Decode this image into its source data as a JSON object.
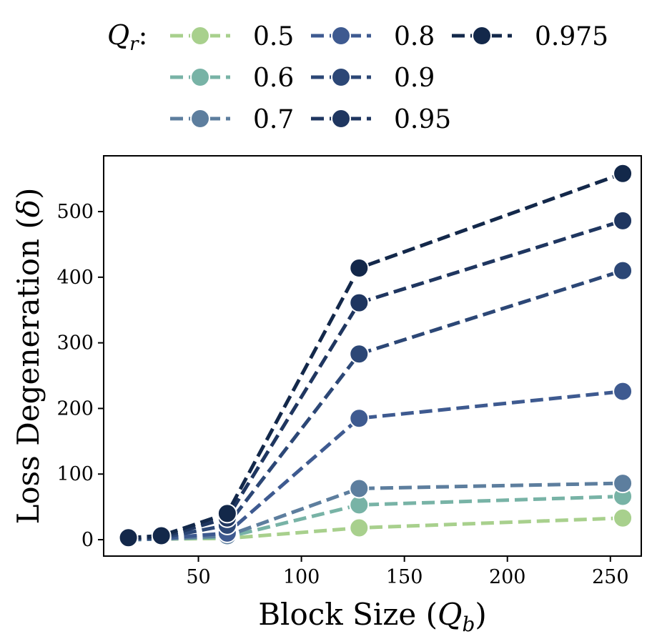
{
  "chart_data": {
    "type": "line",
    "title": "",
    "xlabel_prefix": "Block Size (",
    "xlabel_var": "Q",
    "xlabel_sub": "b",
    "xlabel_suffix": ")",
    "ylabel_prefix": "Loss Degeneration (",
    "ylabel_var": "δ",
    "ylabel_suffix": ")",
    "xlim": [
      4,
      265
    ],
    "ylim": [
      -25,
      585
    ],
    "xticks": [
      50,
      100,
      150,
      200,
      250
    ],
    "yticks": [
      0,
      100,
      200,
      300,
      400,
      500
    ],
    "x": [
      16,
      32,
      64,
      128,
      256
    ],
    "legend_title_var": "Q",
    "legend_title_sub": "r",
    "legend_title_suffix": ":",
    "legend_position": "top",
    "series": [
      {
        "name": "0.5",
        "color": "#a8d08d",
        "values": [
          0,
          1,
          2,
          18,
          33
        ]
      },
      {
        "name": "0.6",
        "color": "#78b3a6",
        "values": [
          0,
          1,
          4,
          53,
          66
        ]
      },
      {
        "name": "0.7",
        "color": "#5d7e9e",
        "values": [
          0,
          1,
          6,
          78,
          86
        ]
      },
      {
        "name": "0.8",
        "color": "#3e5a90",
        "values": [
          1,
          2,
          10,
          185,
          226
        ]
      },
      {
        "name": "0.9",
        "color": "#2c4776",
        "values": [
          1,
          3,
          22,
          283,
          410
        ]
      },
      {
        "name": "0.95",
        "color": "#1f3660",
        "values": [
          2,
          4,
          33,
          361,
          486
        ]
      },
      {
        "name": "0.975",
        "color": "#13284a",
        "values": [
          3,
          6,
          40,
          414,
          558
        ]
      }
    ]
  }
}
